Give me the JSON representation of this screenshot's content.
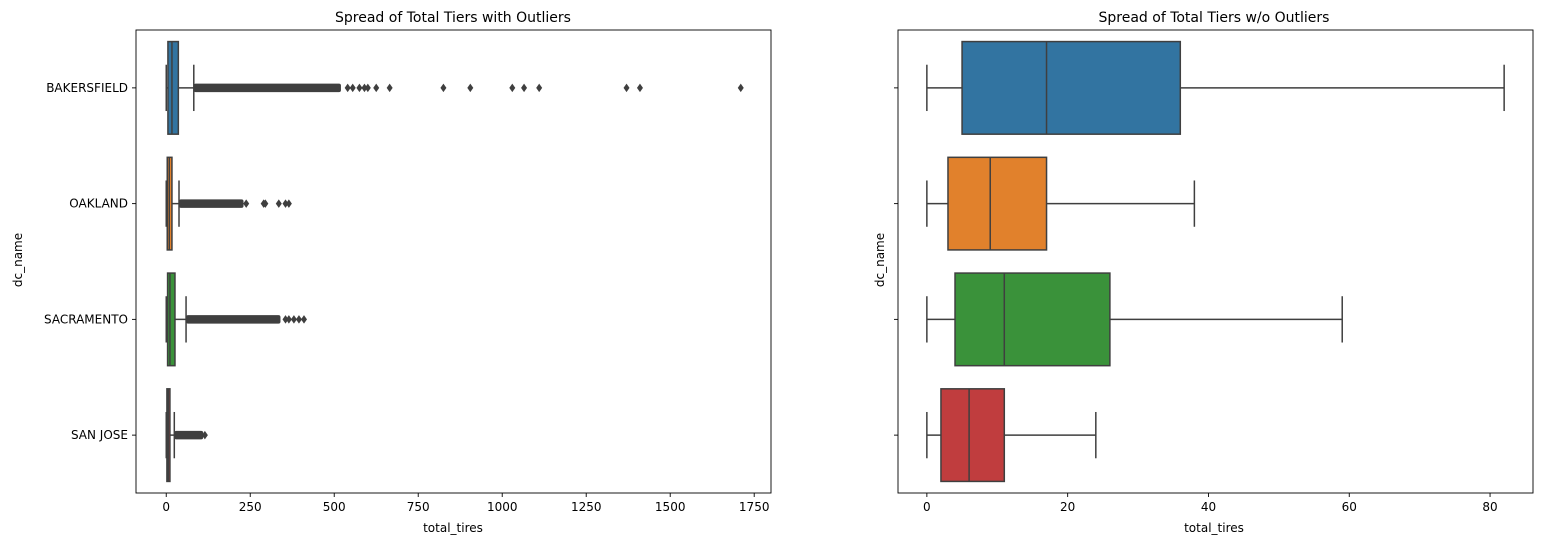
{
  "chart_data": [
    {
      "type": "box",
      "title": "Spread of Total Tiers with Outliers",
      "xlabel": "total_tires",
      "ylabel": "dc_name",
      "xlim": [
        -90,
        1800
      ],
      "xticks": [
        0,
        250,
        500,
        750,
        1000,
        1250,
        1500,
        1750
      ],
      "orientation": "horizontal",
      "grid": false,
      "categories": [
        "BAKERSFIELD",
        "OAKLAND",
        "SACRAMENTO",
        "SAN JOSE"
      ],
      "series": [
        {
          "category": "BAKERSFIELD",
          "color": "#3274a1",
          "min": 0,
          "q1": 5,
          "median": 17,
          "q3": 36,
          "max": 82,
          "outlier_range": [
            82,
            520
          ],
          "outliers": [
            540,
            555,
            575,
            590,
            600,
            625,
            665,
            825,
            905,
            1030,
            1065,
            1110,
            1370,
            1410,
            1710
          ]
        },
        {
          "category": "OAKLAND",
          "color": "#e1812c",
          "min": 0,
          "q1": 3,
          "median": 9,
          "q3": 17,
          "max": 38,
          "outlier_range": [
            38,
            230
          ],
          "outliers": [
            238,
            290,
            295,
            335,
            355,
            365
          ]
        },
        {
          "category": "SACRAMENTO",
          "color": "#3a923a",
          "min": 0,
          "q1": 4,
          "median": 11,
          "q3": 26,
          "max": 59,
          "outlier_range": [
            59,
            340
          ],
          "outliers": [
            355,
            365,
            380,
            395,
            410
          ]
        },
        {
          "category": "SAN JOSE",
          "color": "#c03d3e",
          "min": 0,
          "q1": 2,
          "median": 6,
          "q3": 11,
          "max": 24,
          "outlier_range": [
            24,
            110
          ],
          "outliers": [
            115
          ]
        }
      ]
    },
    {
      "type": "box",
      "title": "Spread of Total Tiers w/o Outliers",
      "xlabel": "total_tires",
      "ylabel": "dc_name",
      "xlim": [
        -4.1,
        86.1
      ],
      "xticks": [
        0,
        20,
        40,
        60,
        80
      ],
      "orientation": "horizontal",
      "grid": false,
      "categories": [
        "BAKERSFIELD",
        "OAKLAND",
        "SACRAMENTO",
        "SAN JOSE"
      ],
      "series": [
        {
          "category": "BAKERSFIELD",
          "color": "#3274a1",
          "min": 0,
          "q1": 5,
          "median": 17,
          "q3": 36,
          "max": 82
        },
        {
          "category": "OAKLAND",
          "color": "#e1812c",
          "min": 0,
          "q1": 3,
          "median": 9,
          "q3": 17,
          "max": 38
        },
        {
          "category": "SACRAMENTO",
          "color": "#3a923a",
          "min": 0,
          "q1": 4,
          "median": 11,
          "q3": 26,
          "max": 59
        },
        {
          "category": "SAN JOSE",
          "color": "#c03d3e",
          "min": 0,
          "q1": 2,
          "median": 6,
          "q3": 11,
          "max": 24
        }
      ]
    }
  ]
}
